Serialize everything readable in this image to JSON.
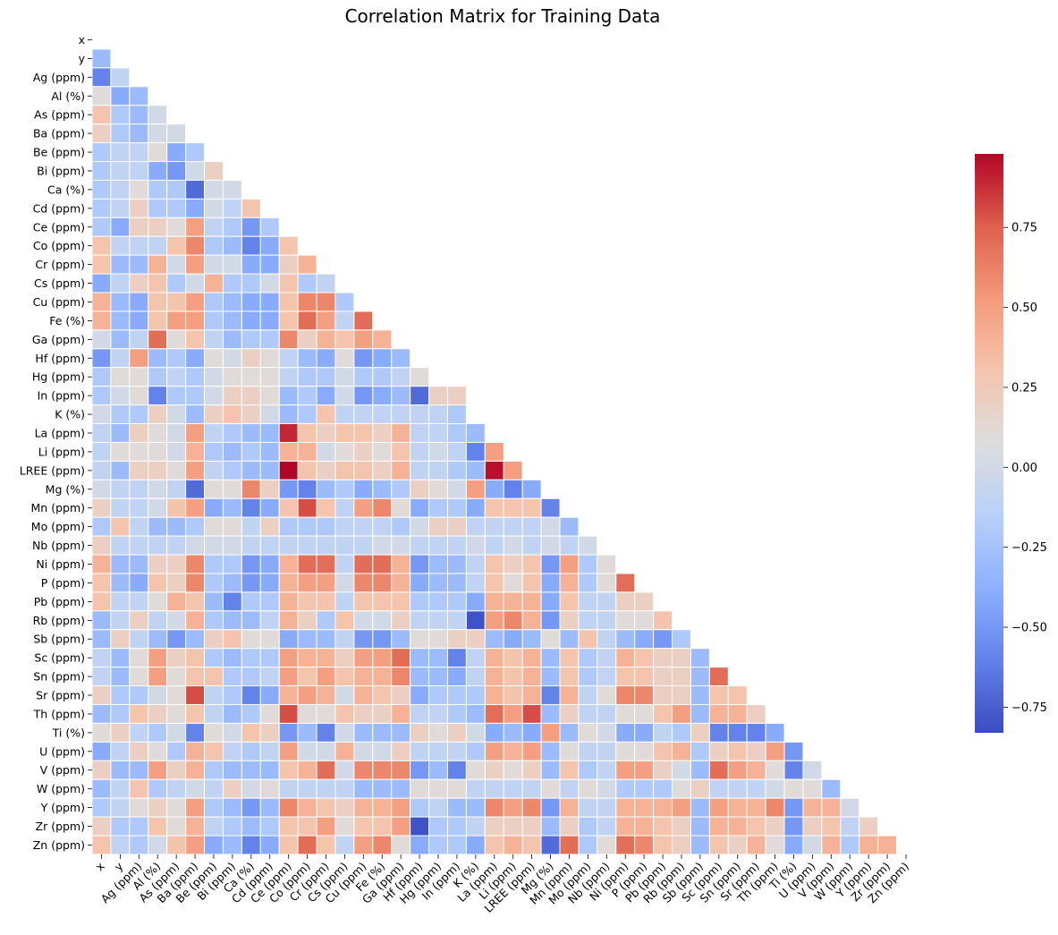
{
  "chart_data": {
    "type": "heatmap",
    "title": "Correlation Matrix for Training Data",
    "mask": "upper-triangle-including-diagonal",
    "colormap": "coolwarm",
    "vmin": -0.83,
    "vmax": 0.98,
    "colorbar_ticks": [
      "0.75",
      "0.50",
      "0.25",
      "0.00",
      "−0.25",
      "−0.50",
      "−0.75"
    ],
    "colorbar_tick_values": [
      0.75,
      0.5,
      0.25,
      0.0,
      -0.25,
      -0.5,
      -0.75
    ],
    "variables": [
      "x",
      "y",
      "Ag (ppm)",
      "Al (%)",
      "As (ppm)",
      "Ba (ppm)",
      "Be (ppm)",
      "Bi (ppm)",
      "Ca (%)",
      "Cd (ppm)",
      "Ce (ppm)",
      "Co (ppm)",
      "Cr (ppm)",
      "Cs (ppm)",
      "Cu (ppm)",
      "Fe (%)",
      "Ga (ppm)",
      "Hf (ppm)",
      "Hg (ppm)",
      "In (ppm)",
      "K (%)",
      "La (ppm)",
      "Li (ppm)",
      "LREE (ppm)",
      "Mg (%)",
      "Mn (ppm)",
      "Mo (ppm)",
      "Nb (ppm)",
      "Ni (ppm)",
      "P (ppm)",
      "Pb (ppm)",
      "Rb (ppm)",
      "Sb (ppm)",
      "Sc (ppm)",
      "Sn (ppm)",
      "Sr (ppm)",
      "Th (ppm)",
      "Ti (%)",
      "U (ppm)",
      "V (ppm)",
      "W (ppm)",
      "Y (ppm)",
      "Zr (ppm)",
      "Zn (ppm)"
    ],
    "values": [
      [],
      [
        -0.3
      ],
      [
        -0.6,
        -0.1
      ],
      [
        0.1,
        -0.4,
        -0.3
      ],
      [
        0.3,
        -0.2,
        -0.3,
        0.0
      ],
      [
        0.2,
        -0.2,
        -0.3,
        0.0,
        0.0
      ],
      [
        -0.2,
        -0.1,
        -0.1,
        0.1,
        -0.4,
        -0.2
      ],
      [
        -0.2,
        -0.1,
        -0.1,
        -0.4,
        -0.5,
        0.0,
        0.2
      ],
      [
        -0.2,
        -0.1,
        0.1,
        -0.2,
        -0.2,
        -0.7,
        0.0,
        0.0
      ],
      [
        -0.2,
        -0.1,
        0.2,
        -0.2,
        -0.2,
        -0.4,
        0.0,
        -0.1,
        0.3
      ],
      [
        -0.2,
        -0.4,
        0.2,
        0.2,
        0.1,
        0.5,
        -0.1,
        -0.2,
        -0.5,
        -0.2
      ],
      [
        0.3,
        -0.1,
        -0.1,
        -0.1,
        0.3,
        0.6,
        -0.2,
        -0.3,
        -0.6,
        -0.4,
        0.3
      ],
      [
        0.3,
        -0.3,
        -0.3,
        0.4,
        0.0,
        0.5,
        0.0,
        0.0,
        -0.4,
        -0.4,
        0.2,
        0.4
      ],
      [
        -0.4,
        -0.1,
        0.2,
        0.3,
        -0.2,
        0.0,
        0.4,
        -0.2,
        -0.2,
        0.0,
        0.3,
        -0.2,
        -0.1
      ],
      [
        0.4,
        -0.3,
        -0.4,
        0.3,
        0.3,
        0.5,
        -0.2,
        -0.3,
        -0.4,
        -0.4,
        0.3,
        0.6,
        0.6,
        -0.2
      ],
      [
        0.4,
        -0.3,
        -0.4,
        0.3,
        0.5,
        0.5,
        -0.2,
        -0.3,
        -0.4,
        -0.4,
        0.3,
        0.7,
        0.5,
        -0.1,
        0.7
      ],
      [
        0.0,
        -0.3,
        -0.1,
        0.7,
        0.1,
        0.3,
        -0.1,
        -0.3,
        -0.2,
        -0.2,
        0.6,
        0.2,
        0.4,
        0.3,
        0.5,
        0.4
      ],
      [
        -0.5,
        -0.1,
        0.5,
        -0.3,
        -0.2,
        -0.4,
        0.1,
        0.0,
        0.2,
        0.1,
        -0.1,
        -0.3,
        -0.4,
        0.1,
        -0.5,
        -0.4,
        -0.3
      ],
      [
        -0.2,
        0.1,
        0.1,
        -0.2,
        -0.1,
        -0.2,
        0.0,
        0.1,
        0.1,
        0.1,
        -0.1,
        -0.2,
        -0.2,
        0.0,
        -0.2,
        -0.2,
        -0.1,
        0.1
      ],
      [
        -0.2,
        0.0,
        0.1,
        -0.6,
        -0.2,
        -0.2,
        0.0,
        0.2,
        0.2,
        0.1,
        -0.3,
        -0.2,
        -0.4,
        0.0,
        -0.5,
        -0.4,
        -0.3,
        -0.7,
        0.2,
        0.2
      ],
      [
        0.0,
        -0.2,
        -0.2,
        0.2,
        0.0,
        -0.3,
        0.2,
        0.3,
        0.2,
        0.0,
        -0.3,
        -0.2,
        0.3,
        -0.1,
        -0.1,
        -0.1,
        -0.1,
        -0.1,
        -0.1,
        -0.2
      ],
      [
        -0.1,
        -0.3,
        0.2,
        0.1,
        0.0,
        0.5,
        -0.1,
        -0.2,
        -0.3,
        -0.3,
        0.9,
        0.3,
        0.2,
        0.3,
        0.3,
        0.2,
        0.4,
        -0.1,
        -0.1,
        -0.2,
        -0.3
      ],
      [
        -0.1,
        0.1,
        0.1,
        0.1,
        0.0,
        0.4,
        -0.2,
        -0.3,
        -0.2,
        -0.3,
        0.4,
        0.4,
        0.0,
        0.1,
        0.2,
        0.1,
        0.3,
        -0.1,
        0.0,
        -0.1,
        -0.6,
        0.5
      ],
      [
        -0.1,
        -0.3,
        0.2,
        0.2,
        0.1,
        0.5,
        -0.1,
        -0.2,
        -0.3,
        -0.3,
        0.98,
        0.3,
        0.2,
        0.3,
        0.3,
        0.2,
        0.4,
        -0.1,
        -0.1,
        -0.2,
        -0.3,
        0.95,
        0.5
      ],
      [
        0.0,
        -0.1,
        -0.1,
        0.0,
        -0.1,
        -0.7,
        0.1,
        0.1,
        0.6,
        0.2,
        -0.5,
        -0.6,
        -0.3,
        -0.2,
        -0.4,
        -0.3,
        -0.2,
        0.2,
        0.1,
        0.0,
        0.5,
        -0.4,
        -0.6,
        -0.4
      ],
      [
        0.2,
        -0.1,
        -0.1,
        0.0,
        0.3,
        0.5,
        -0.4,
        -0.3,
        -0.6,
        -0.4,
        0.3,
        0.8,
        0.3,
        -0.1,
        0.5,
        0.6,
        0.1,
        -0.4,
        -0.2,
        -0.2,
        -0.4,
        0.3,
        0.3,
        0.3,
        -0.6
      ],
      [
        -0.2,
        0.3,
        -0.1,
        -0.3,
        -0.3,
        -0.2,
        0.1,
        0.1,
        -0.1,
        0.2,
        -0.2,
        -0.2,
        -0.2,
        -0.1,
        -0.1,
        -0.1,
        -0.2,
        0.0,
        0.2,
        0.2,
        -0.1,
        -0.1,
        -0.1,
        -0.1,
        0.0,
        -0.3
      ],
      [
        0.2,
        -0.1,
        -0.1,
        -0.1,
        -0.1,
        0.0,
        0.0,
        0.0,
        -0.1,
        -0.1,
        -0.1,
        -0.1,
        -0.1,
        -0.1,
        -0.1,
        0.0,
        0.0,
        -0.1,
        -0.1,
        -0.1,
        0.0,
        -0.1,
        0.0,
        -0.1,
        0.0,
        -0.1,
        0.0
      ],
      [
        0.4,
        -0.3,
        -0.3,
        0.2,
        0.2,
        0.6,
        -0.2,
        -0.2,
        -0.5,
        -0.4,
        0.4,
        0.7,
        0.7,
        -0.1,
        0.7,
        0.7,
        0.4,
        -0.5,
        -0.3,
        -0.3,
        -0.1,
        0.3,
        0.2,
        0.3,
        -0.5,
        0.5,
        -0.2,
        0.1
      ],
      [
        0.3,
        -0.3,
        -0.4,
        0.3,
        0.2,
        0.6,
        -0.2,
        -0.3,
        -0.5,
        -0.4,
        0.4,
        0.5,
        0.5,
        0.0,
        0.6,
        0.6,
        0.4,
        -0.4,
        -0.3,
        -0.3,
        -0.1,
        0.3,
        0.1,
        0.3,
        -0.4,
        0.4,
        -0.2,
        0.1,
        0.7
      ],
      [
        0.3,
        -0.1,
        -0.1,
        0.1,
        0.4,
        0.3,
        -0.3,
        -0.6,
        -0.2,
        -0.2,
        0.4,
        0.3,
        0.3,
        -0.1,
        0.3,
        0.3,
        0.3,
        -0.2,
        -0.2,
        -0.2,
        -0.4,
        0.4,
        0.4,
        0.4,
        -0.4,
        0.3,
        -0.1,
        -0.1,
        0.2,
        0.2
      ],
      [
        -0.3,
        -0.1,
        0.2,
        -0.1,
        0.0,
        0.4,
        -0.2,
        -0.3,
        -0.3,
        -0.1,
        0.4,
        0.2,
        -0.2,
        0.3,
        0.0,
        0.0,
        0.2,
        -0.1,
        -0.1,
        -0.1,
        -0.8,
        0.5,
        0.6,
        0.4,
        -0.5,
        0.2,
        -0.1,
        -0.1,
        0.1,
        0.1,
        0.3
      ],
      [
        -0.3,
        0.2,
        -0.1,
        -0.3,
        -0.5,
        -0.3,
        0.2,
        0.3,
        0.1,
        0.1,
        -0.4,
        -0.3,
        -0.3,
        -0.1,
        -0.5,
        -0.5,
        -0.3,
        0.1,
        0.1,
        0.2,
        0.2,
        -0.3,
        -0.4,
        -0.3,
        0.1,
        -0.3,
        0.3,
        -0.1,
        -0.3,
        -0.4,
        -0.5,
        -0.2
      ],
      [
        -0.1,
        -0.3,
        0.1,
        0.5,
        0.2,
        0.3,
        -0.2,
        -0.3,
        -0.2,
        -0.2,
        0.5,
        0.4,
        0.4,
        0.2,
        0.5,
        0.5,
        0.7,
        -0.3,
        -0.3,
        -0.6,
        -0.1,
        0.4,
        0.3,
        0.4,
        -0.3,
        0.3,
        -0.2,
        -0.1,
        0.4,
        0.3,
        0.2,
        0.2,
        -0.3
      ],
      [
        -0.1,
        -0.3,
        0.1,
        0.5,
        0.1,
        0.3,
        0.3,
        -0.2,
        -0.2,
        -0.1,
        0.5,
        0.3,
        0.5,
        0.3,
        0.4,
        0.4,
        0.6,
        -0.3,
        -0.3,
        -0.4,
        -0.1,
        0.4,
        0.3,
        0.4,
        -0.3,
        0.3,
        -0.2,
        -0.1,
        0.3,
        0.3,
        0.2,
        0.2,
        -0.3,
        0.7
      ],
      [
        0.2,
        -0.2,
        -0.2,
        0.0,
        0.1,
        0.8,
        -0.1,
        -0.2,
        -0.6,
        -0.4,
        0.4,
        0.5,
        0.4,
        0.0,
        0.4,
        0.3,
        0.2,
        -0.4,
        -0.2,
        -0.2,
        -0.2,
        0.4,
        0.3,
        0.4,
        -0.6,
        0.4,
        -0.1,
        0.1,
        0.6,
        0.6,
        0.2,
        0.2,
        -0.3,
        0.3,
        0.3
      ],
      [
        -0.3,
        -0.2,
        0.3,
        0.2,
        0.1,
        0.3,
        -0.1,
        -0.3,
        -0.2,
        0.1,
        0.8,
        0.1,
        0.1,
        0.3,
        0.2,
        0.2,
        0.4,
        -0.1,
        -0.1,
        -0.2,
        -0.3,
        0.7,
        0.5,
        0.8,
        -0.3,
        0.2,
        -0.1,
        -0.1,
        0.1,
        0.1,
        0.3,
        0.5,
        -0.3,
        0.4,
        0.4,
        0.2
      ],
      [
        0.1,
        0.2,
        -0.1,
        -0.2,
        0.0,
        -0.6,
        0.1,
        0.0,
        0.3,
        0.2,
        -0.5,
        -0.3,
        -0.6,
        0.0,
        -0.3,
        -0.3,
        -0.3,
        0.2,
        0.1,
        0.2,
        0.0,
        -0.4,
        -0.3,
        -0.4,
        0.5,
        -0.3,
        0.1,
        0.0,
        -0.4,
        -0.4,
        -0.1,
        -0.2,
        0.2,
        -0.6,
        -0.6,
        -0.6,
        -0.4
      ],
      [
        -0.4,
        -0.1,
        0.2,
        0.1,
        -0.2,
        0.4,
        0.3,
        -0.1,
        -0.2,
        -0.1,
        0.5,
        0.0,
        0.0,
        0.4,
        0.0,
        0.0,
        0.2,
        -0.1,
        -0.1,
        -0.1,
        -0.2,
        0.5,
        0.4,
        0.5,
        -0.3,
        0.1,
        -0.1,
        -0.1,
        0.1,
        0.1,
        0.3,
        0.4,
        -0.2,
        0.2,
        0.3,
        0.2,
        0.5,
        -0.5
      ],
      [
        0.2,
        -0.3,
        -0.3,
        0.5,
        0.2,
        0.4,
        -0.2,
        -0.3,
        -0.3,
        -0.3,
        0.3,
        0.4,
        0.7,
        0.0,
        0.6,
        0.6,
        0.6,
        -0.5,
        -0.3,
        -0.6,
        0.1,
        0.2,
        0.1,
        0.2,
        -0.3,
        0.3,
        -0.2,
        -0.1,
        0.5,
        0.5,
        0.2,
        0.0,
        -0.3,
        0.7,
        0.5,
        0.4,
        0.1,
        -0.6,
        0.0
      ],
      [
        -0.3,
        -0.1,
        0.3,
        -0.2,
        -0.1,
        0.0,
        -0.1,
        0.2,
        0.0,
        0.1,
        -0.1,
        -0.1,
        -0.1,
        -0.1,
        -0.3,
        -0.3,
        -0.3,
        0.1,
        0.1,
        0.1,
        -0.1,
        -0.1,
        -0.1,
        -0.1,
        0.1,
        -0.1,
        0.1,
        0.0,
        -0.2,
        -0.2,
        -0.2,
        0.1,
        0.2,
        -0.1,
        -0.1,
        -0.1,
        0.0,
        0.1,
        0.1,
        -0.3
      ],
      [
        -0.2,
        -0.1,
        0.1,
        0.2,
        0.1,
        0.5,
        -0.2,
        -0.3,
        -0.5,
        -0.3,
        0.6,
        0.4,
        0.3,
        0.2,
        0.4,
        0.4,
        0.5,
        -0.2,
        -0.1,
        -0.3,
        -0.3,
        0.6,
        0.5,
        0.6,
        -0.5,
        0.4,
        -0.1,
        -0.1,
        0.4,
        0.4,
        0.4,
        0.5,
        -0.3,
        0.5,
        0.4,
        0.4,
        0.6,
        -0.5,
        0.4,
        0.4,
        0.0
      ],
      [
        0.2,
        -0.2,
        -0.2,
        0.3,
        0.1,
        0.4,
        -0.1,
        -0.2,
        -0.3,
        -0.2,
        0.3,
        0.3,
        0.5,
        0.1,
        0.3,
        0.3,
        0.5,
        -0.8,
        -0.2,
        -0.2,
        -0.1,
        0.2,
        0.2,
        0.2,
        -0.3,
        0.2,
        -0.2,
        -0.1,
        0.4,
        0.4,
        0.3,
        0.2,
        -0.3,
        0.4,
        0.4,
        0.3,
        0.2,
        -0.5,
        0.2,
        0.3,
        -0.1,
        0.2
      ],
      [
        0.3,
        -0.1,
        -0.2,
        0.0,
        0.3,
        0.5,
        -0.4,
        -0.3,
        -0.6,
        -0.4,
        0.3,
        0.7,
        0.3,
        -0.1,
        0.5,
        0.6,
        0.1,
        -0.4,
        -0.2,
        -0.2,
        -0.4,
        0.3,
        0.4,
        0.3,
        -0.7,
        0.7,
        -0.2,
        0.1,
        0.7,
        0.6,
        0.3,
        0.2,
        -0.3,
        0.3,
        0.2,
        0.4,
        0.1,
        -0.4,
        0.0,
        0.4,
        -0.2,
        0.4,
        0.4
      ]
    ]
  }
}
